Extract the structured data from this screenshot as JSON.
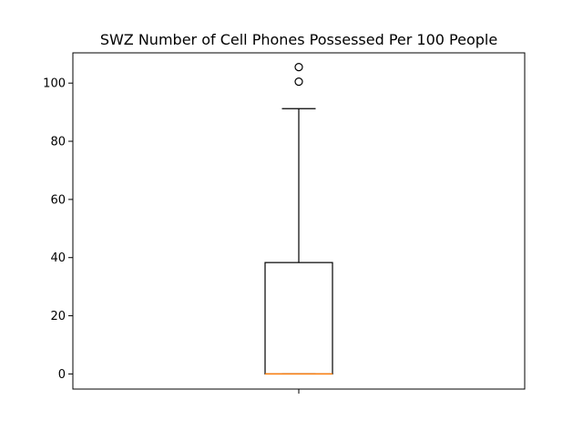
{
  "chart_data": {
    "type": "boxplot",
    "title": "SWZ Number of Cell Phones Possessed Per 100 People",
    "xlabel": "",
    "ylabel": "",
    "ylim": [
      -5.2,
      110.4
    ],
    "yticks": [
      0,
      20,
      40,
      60,
      80,
      100
    ],
    "ytick_labels": [
      "0",
      "20",
      "40",
      "60",
      "80",
      "100"
    ],
    "grid": false,
    "box": {
      "min": 0,
      "q1": 0,
      "median": 0,
      "q3": 38.3,
      "whisker_high": 91.2,
      "whisker_low": 0,
      "outliers": [
        100.5,
        105.5
      ]
    },
    "colors": {
      "box": "#000000",
      "median": "#ff7f0e",
      "axes": "#000000",
      "background": "#ffffff"
    }
  }
}
